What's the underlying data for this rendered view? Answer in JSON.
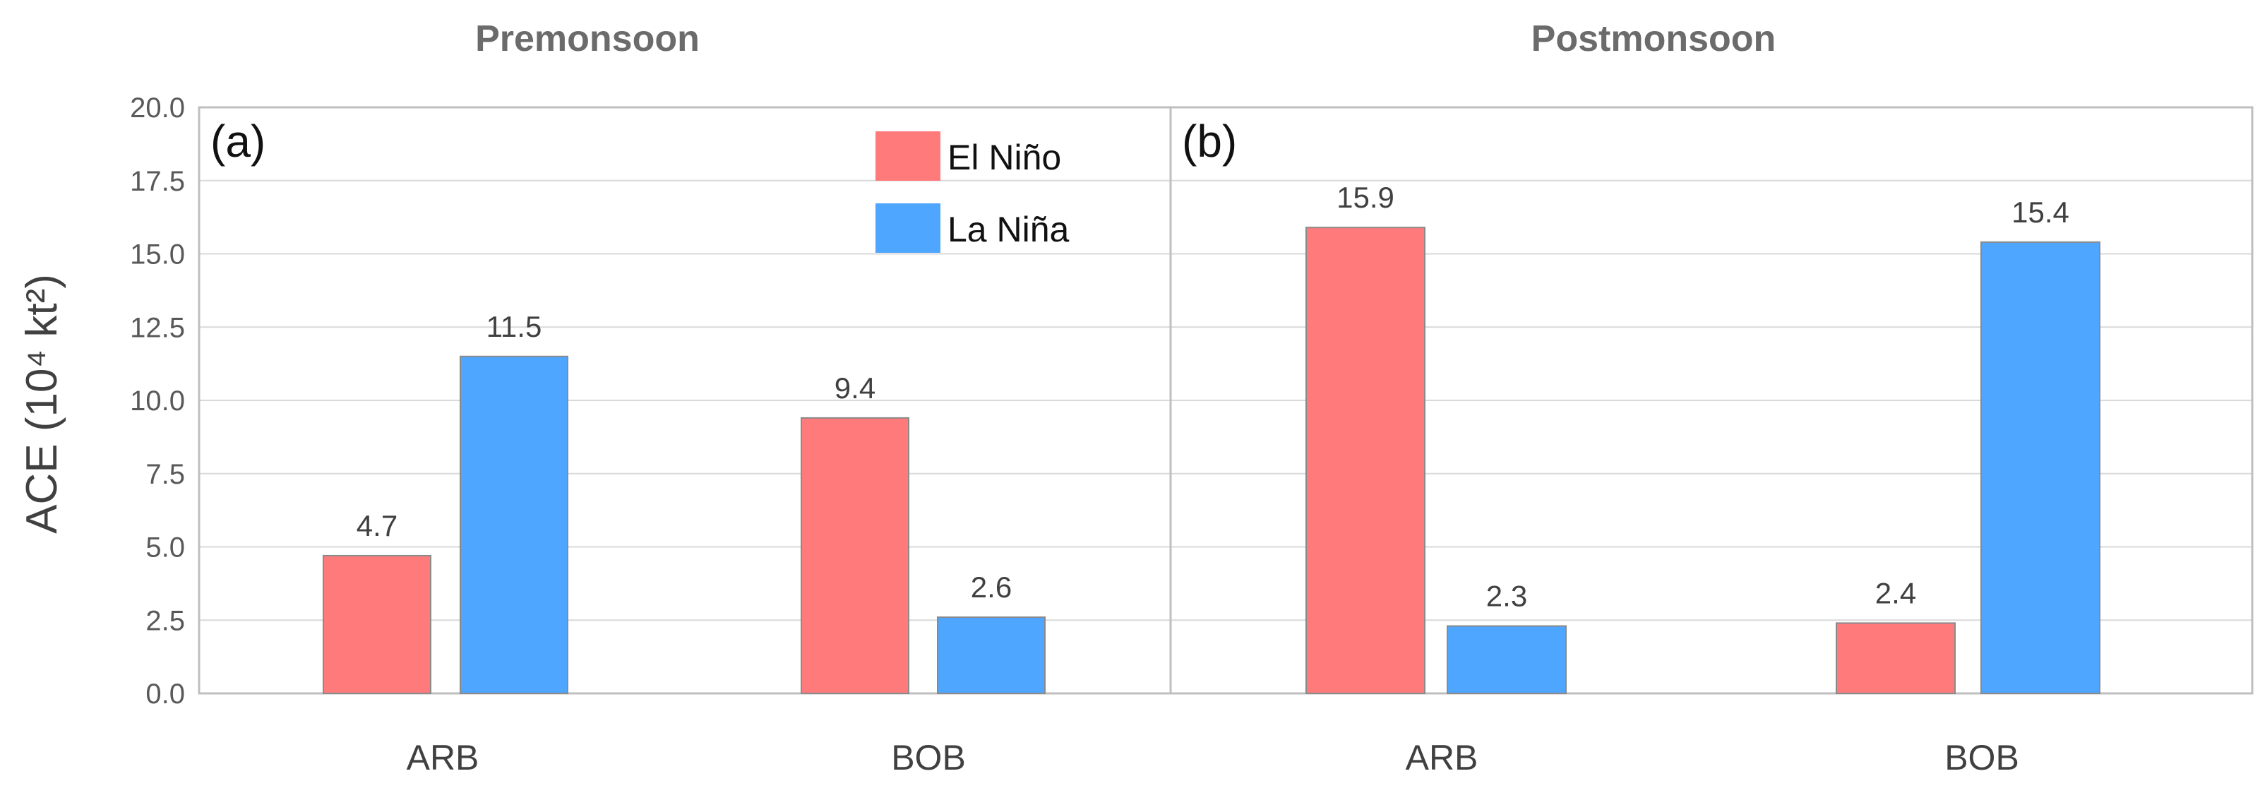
{
  "chart_data": [
    {
      "type": "bar",
      "panel_label": "(a)",
      "title": "Premonsoon",
      "ylabel": "ACE (10⁴ kt²)",
      "ylim": [
        0,
        20
      ],
      "yticks": [
        "0.0",
        "2.5",
        "5.0",
        "7.5",
        "10.0",
        "12.5",
        "15.0",
        "17.5",
        "20.0"
      ],
      "grid": true,
      "legend_placement": "top-right",
      "categories": [
        "ARB",
        "BOB"
      ],
      "series": [
        {
          "name": "El Niño",
          "color": "#ff7b7b",
          "values": [
            4.7,
            9.4
          ],
          "labels": [
            "4.7",
            "9.4"
          ]
        },
        {
          "name": "La Niña",
          "color": "#4ea6ff",
          "values": [
            11.5,
            2.6
          ],
          "labels": [
            "11.5",
            "2.6"
          ]
        }
      ]
    },
    {
      "type": "bar",
      "panel_label": "(b)",
      "title": "Postmonsoon",
      "ylim": [
        0,
        20
      ],
      "grid": true,
      "categories": [
        "ARB",
        "BOB"
      ],
      "series": [
        {
          "name": "El Niño",
          "color": "#ff7b7b",
          "values": [
            15.9,
            2.4
          ],
          "labels": [
            "15.9",
            "2.4"
          ]
        },
        {
          "name": "La Niña",
          "color": "#4ea6ff",
          "values": [
            2.3,
            15.4
          ],
          "labels": [
            "2.3",
            "15.4"
          ]
        }
      ]
    }
  ]
}
